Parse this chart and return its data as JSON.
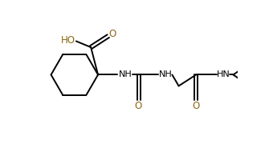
{
  "bg_color": "#ffffff",
  "bond_color": "#000000",
  "o_color": "#8B6914",
  "ho_color": "#8B6914",
  "nh_color": "#000080",
  "lw": 1.4,
  "fs": 8.0,
  "xlim": [
    0,
    10.0
  ],
  "ylim": [
    0,
    5.6
  ],
  "figw": 3.3,
  "figh": 1.85,
  "dpi": 100
}
